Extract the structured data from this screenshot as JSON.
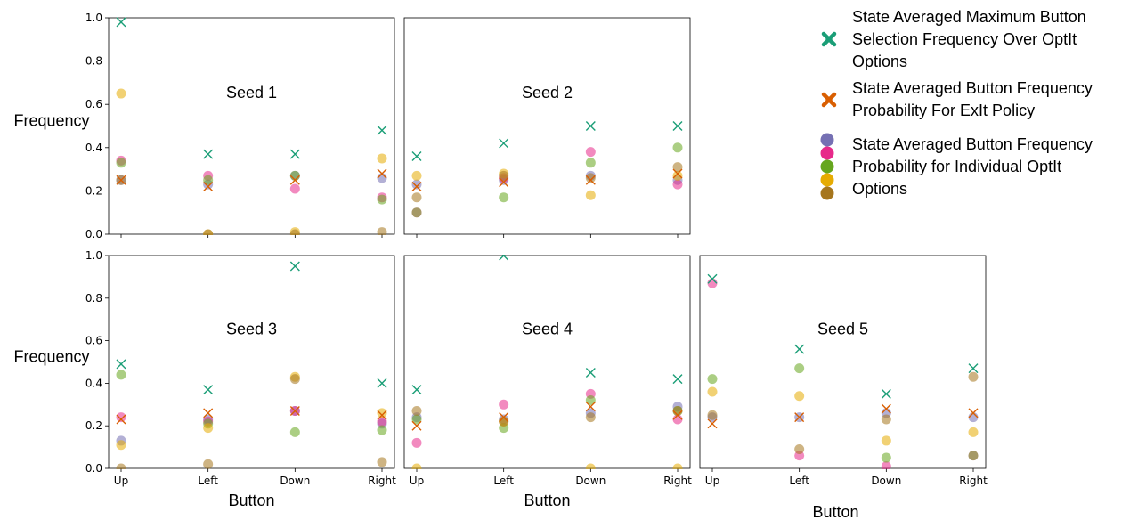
{
  "chart_data": {
    "type": "scatter",
    "categories": [
      "Up",
      "Left",
      "Down",
      "Right"
    ],
    "xlabel": "Button",
    "ylabel": "Frequency",
    "ylim": [
      0,
      1
    ],
    "yticks": [
      "0.0",
      "0.2",
      "0.4",
      "0.6",
      "0.8",
      "1.0"
    ],
    "grid": false,
    "legend_position": "top-right",
    "colors": {
      "max_selection": "#1b9e77",
      "exit_policy": "#d95f02",
      "options": [
        "#7570b3",
        "#e7298a",
        "#66a61e",
        "#e6ab02",
        "#a6761d"
      ]
    },
    "legend": [
      {
        "marker": "x",
        "color": "#1b9e77",
        "label": [
          "State Averaged Maximum Button",
          "Selection Frequency Over OptIt",
          "Options"
        ]
      },
      {
        "marker": "x",
        "color": "#d95f02",
        "label": [
          "State Averaged Button Frequency",
          "Probability For ExIt Policy"
        ]
      },
      {
        "marker": "dots",
        "colors": [
          "#7570b3",
          "#e7298a",
          "#66a61e",
          "#e6ab02",
          "#a6761d"
        ],
        "label": [
          "State Averaged Button Frequency",
          "Probability for Individual OptIt",
          "Options"
        ]
      }
    ],
    "panels": [
      {
        "title": "Seed 1",
        "max_selection": [
          0.98,
          0.37,
          0.37,
          0.48
        ],
        "exit_policy": [
          0.25,
          0.22,
          0.25,
          0.28
        ],
        "options": [
          [
            0.25,
            0.23,
            0.27,
            0.26
          ],
          [
            0.34,
            0.27,
            0.21,
            0.17
          ],
          [
            0.33,
            0.25,
            0.27,
            0.16
          ],
          [
            0.65,
            0.0,
            0.01,
            0.35
          ],
          [
            0.25,
            0.0,
            0.0,
            0.01
          ]
        ]
      },
      {
        "title": "Seed 2",
        "max_selection": [
          0.36,
          0.42,
          0.5,
          0.5
        ],
        "exit_policy": [
          0.22,
          0.24,
          0.25,
          0.28
        ],
        "options": [
          [
            0.23,
            0.25,
            0.27,
            0.25
          ],
          [
            0.1,
            0.26,
            0.38,
            0.23
          ],
          [
            0.1,
            0.17,
            0.33,
            0.4
          ],
          [
            0.27,
            0.28,
            0.18,
            0.27
          ],
          [
            0.17,
            0.27,
            0.26,
            0.31
          ]
        ]
      },
      {
        "title": "Seed 3",
        "max_selection": [
          0.49,
          0.37,
          0.95,
          0.4
        ],
        "exit_policy": [
          0.23,
          0.26,
          0.27,
          0.25
        ],
        "options": [
          [
            0.13,
            0.23,
            0.27,
            0.21
          ],
          [
            0.24,
            0.22,
            0.27,
            0.22
          ],
          [
            0.44,
            0.21,
            0.17,
            0.18
          ],
          [
            0.11,
            0.19,
            0.43,
            0.26
          ],
          [
            0.0,
            0.02,
            0.42,
            0.03
          ]
        ]
      },
      {
        "title": "Seed 4",
        "max_selection": [
          0.37,
          1.0,
          0.45,
          0.42
        ],
        "exit_policy": [
          0.2,
          0.24,
          0.29,
          0.25
        ],
        "options": [
          [
            0.24,
            0.23,
            0.26,
            0.29
          ],
          [
            0.12,
            0.3,
            0.35,
            0.23
          ],
          [
            0.23,
            0.19,
            0.32,
            0.27
          ],
          [
            0.0,
            0.22,
            0.0,
            0.0
          ],
          [
            0.27,
            0.22,
            0.24,
            0.27
          ]
        ]
      },
      {
        "title": "Seed 5",
        "max_selection": [
          0.89,
          0.56,
          0.35,
          0.47
        ],
        "exit_policy": [
          0.21,
          0.24,
          0.28,
          0.26
        ],
        "options": [
          [
            0.24,
            0.24,
            0.26,
            0.24
          ],
          [
            0.87,
            0.06,
            0.01,
            0.06
          ],
          [
            0.42,
            0.47,
            0.05,
            0.06
          ],
          [
            0.36,
            0.34,
            0.13,
            0.17
          ],
          [
            0.25,
            0.09,
            0.23,
            0.43
          ]
        ]
      }
    ]
  }
}
